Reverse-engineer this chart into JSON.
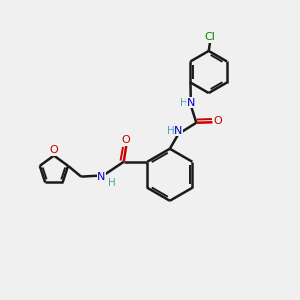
{
  "background_color": "#f0f0f0",
  "bond_color": "#1a1a1a",
  "N_color": "#0000cc",
  "O_color": "#cc0000",
  "Cl_color": "#008800",
  "H_color": "#4da6a6",
  "figsize": [
    3.0,
    3.0
  ],
  "dpi": 100,
  "xlim": [
    0,
    12
  ],
  "ylim": [
    0,
    12
  ]
}
